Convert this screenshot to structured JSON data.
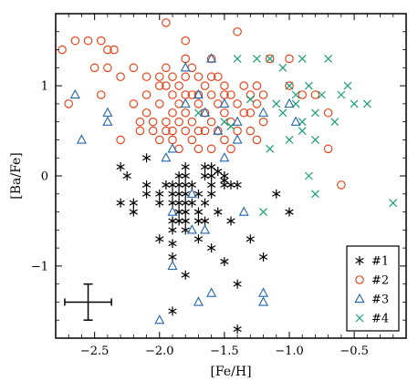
{
  "chart_data": {
    "type": "scatter",
    "xlabel": "[Fe/H]",
    "ylabel": "[Ba/Fe]",
    "xlim": [
      -2.8,
      -0.1
    ],
    "ylim": [
      -1.8,
      1.8
    ],
    "xticks": [
      -2.5,
      -2.0,
      -1.5,
      -1.0,
      -0.5
    ],
    "xtick_labels": [
      "−2.5",
      "−2.0",
      "−1.5",
      "−1.0",
      "−0.5"
    ],
    "yticks": [
      -1,
      0,
      1
    ],
    "ytick_labels": [
      "−1",
      "0",
      "1"
    ],
    "legend_position": "lower-right",
    "error_bar": {
      "x": -2.55,
      "y": -1.4,
      "xerr": 0.18,
      "yerr": 0.2
    },
    "series": [
      {
        "name": "#1",
        "marker": "asterisk",
        "color": "#000000",
        "points": [
          [
            -2.3,
            -0.3
          ],
          [
            -2.2,
            -0.4
          ],
          [
            -2.2,
            -0.3
          ],
          [
            -2.1,
            -0.2
          ],
          [
            -2.1,
            -0.1
          ],
          [
            -2.0,
            -0.2
          ],
          [
            -2.0,
            -0.3
          ],
          [
            -1.95,
            -0.1
          ],
          [
            -1.9,
            -0.1
          ],
          [
            -1.9,
            -0.2
          ],
          [
            -1.9,
            -0.3
          ],
          [
            -1.9,
            -0.5
          ],
          [
            -1.9,
            -0.6
          ],
          [
            -1.9,
            -0.75
          ],
          [
            -1.85,
            0.0
          ],
          [
            -1.85,
            -0.1
          ],
          [
            -1.85,
            -0.2
          ],
          [
            -1.85,
            -0.3
          ],
          [
            -1.85,
            -0.4
          ],
          [
            -1.85,
            -0.5
          ],
          [
            -1.8,
            0.1
          ],
          [
            -1.8,
            0.0
          ],
          [
            -1.8,
            -0.1
          ],
          [
            -1.8,
            -0.2
          ],
          [
            -1.8,
            -0.3
          ],
          [
            -1.8,
            -0.4
          ],
          [
            -1.8,
            -0.5
          ],
          [
            -1.8,
            -0.6
          ],
          [
            -1.75,
            -0.1
          ],
          [
            -1.75,
            -0.3
          ],
          [
            -1.7,
            -0.2
          ],
          [
            -1.7,
            -0.4
          ],
          [
            -1.7,
            -0.5
          ],
          [
            -1.7,
            -0.7
          ],
          [
            -1.65,
            0.1
          ],
          [
            -1.65,
            0.0
          ],
          [
            -1.65,
            -0.3
          ],
          [
            -1.65,
            -0.5
          ],
          [
            -1.6,
            0.0
          ],
          [
            -1.6,
            -0.1
          ],
          [
            -1.6,
            -0.2
          ],
          [
            -1.55,
            -0.4
          ],
          [
            -1.5,
            0.0
          ],
          [
            -1.5,
            -0.1
          ],
          [
            -1.45,
            -0.1
          ],
          [
            -1.45,
            -0.5
          ],
          [
            -1.4,
            -0.1
          ],
          [
            -1.3,
            -0.7
          ],
          [
            -1.2,
            -0.9
          ],
          [
            -1.1,
            -0.2
          ],
          [
            -1.0,
            -0.4
          ],
          [
            -2.3,
            0.1
          ],
          [
            -2.25,
            0.0
          ],
          [
            -2.1,
            0.2
          ],
          [
            -2.0,
            -0.7
          ],
          [
            -1.9,
            -0.9
          ],
          [
            -1.8,
            -1.1
          ],
          [
            -1.9,
            -1.5
          ],
          [
            -1.6,
            -0.8
          ],
          [
            -1.5,
            -0.95
          ],
          [
            -1.4,
            -1.2
          ],
          [
            -1.4,
            -1.7
          ],
          [
            -1.5,
            -0.05
          ],
          [
            -1.6,
            0.1
          ],
          [
            -1.55,
            0.05
          ]
        ]
      },
      {
        "name": "#2",
        "marker": "circle",
        "color": "#e8451c",
        "points": [
          [
            -2.75,
            1.4
          ],
          [
            -2.65,
            1.5
          ],
          [
            -2.55,
            1.5
          ],
          [
            -2.45,
            1.5
          ],
          [
            -2.4,
            1.4
          ],
          [
            -2.35,
            1.4
          ],
          [
            -2.7,
            0.8
          ],
          [
            -2.5,
            1.2
          ],
          [
            -2.45,
            0.9
          ],
          [
            -2.4,
            1.2
          ],
          [
            -2.3,
            1.1
          ],
          [
            -2.3,
            0.4
          ],
          [
            -2.2,
            1.2
          ],
          [
            -2.2,
            0.8
          ],
          [
            -2.15,
            0.6
          ],
          [
            -2.15,
            0.5
          ],
          [
            -2.1,
            0.9
          ],
          [
            -2.05,
            0.6
          ],
          [
            -2.05,
            0.5
          ],
          [
            -2.0,
            1.1
          ],
          [
            -2.0,
            0.8
          ],
          [
            -2.0,
            0.4
          ],
          [
            -1.95,
            1.7
          ],
          [
            -1.95,
            1.2
          ],
          [
            -1.95,
            1.0
          ],
          [
            -1.95,
            0.6
          ],
          [
            -1.95,
            0.5
          ],
          [
            -1.9,
            1.1
          ],
          [
            -1.9,
            0.9
          ],
          [
            -1.9,
            0.7
          ],
          [
            -1.9,
            0.4
          ],
          [
            -1.85,
            1.0
          ],
          [
            -1.85,
            0.8
          ],
          [
            -1.85,
            0.6
          ],
          [
            -1.85,
            0.3
          ],
          [
            -1.8,
            1.5
          ],
          [
            -1.8,
            1.3
          ],
          [
            -1.8,
            1.1
          ],
          [
            -1.8,
            0.9
          ],
          [
            -1.8,
            0.7
          ],
          [
            -1.8,
            0.5
          ],
          [
            -1.75,
            1.2
          ],
          [
            -1.75,
            0.9
          ],
          [
            -1.75,
            0.6
          ],
          [
            -1.75,
            0.4
          ],
          [
            -1.7,
            1.1
          ],
          [
            -1.7,
            0.8
          ],
          [
            -1.7,
            0.5
          ],
          [
            -1.7,
            0.3
          ],
          [
            -1.65,
            1.0
          ],
          [
            -1.65,
            0.7
          ],
          [
            -1.65,
            0.5
          ],
          [
            -1.6,
            1.3
          ],
          [
            -1.6,
            1.1
          ],
          [
            -1.6,
            0.9
          ],
          [
            -1.6,
            0.6
          ],
          [
            -1.6,
            0.3
          ],
          [
            -1.55,
            1.1
          ],
          [
            -1.55,
            0.8
          ],
          [
            -1.55,
            0.5
          ],
          [
            -1.5,
            1.0
          ],
          [
            -1.5,
            0.7
          ],
          [
            -1.5,
            0.4
          ],
          [
            -1.45,
            0.9
          ],
          [
            -1.45,
            0.6
          ],
          [
            -1.45,
            0.3
          ],
          [
            -1.4,
            1.6
          ],
          [
            -1.4,
            0.8
          ],
          [
            -1.4,
            0.5
          ],
          [
            -1.35,
            1.0
          ],
          [
            -1.35,
            0.7
          ],
          [
            -1.3,
            0.9
          ],
          [
            -1.3,
            0.5
          ],
          [
            -1.25,
            0.8
          ],
          [
            -1.25,
            0.4
          ],
          [
            -1.2,
            0.9
          ],
          [
            -1.2,
            0.6
          ],
          [
            -1.15,
            1.3
          ],
          [
            -1.0,
            1.3
          ],
          [
            -1.0,
            1.0
          ],
          [
            -0.9,
            0.9
          ],
          [
            -0.8,
            0.9
          ],
          [
            -0.7,
            0.3
          ],
          [
            -0.7,
            0.7
          ],
          [
            -0.6,
            -0.1
          ],
          [
            -2.1,
            1.1
          ],
          [
            -2.0,
            1.0
          ],
          [
            -2.1,
            0.7
          ],
          [
            -1.9,
            0.5
          ],
          [
            -1.7,
            0.9
          ],
          [
            -1.5,
            0.9
          ],
          [
            -1.3,
            0.7
          ],
          [
            -1.25,
            1.0
          ]
        ]
      },
      {
        "name": "#3",
        "marker": "triangle",
        "color": "#2166ac",
        "points": [
          [
            -2.65,
            0.9
          ],
          [
            -2.6,
            0.4
          ],
          [
            -2.4,
            0.7
          ],
          [
            -2.4,
            0.6
          ],
          [
            -2.0,
            -1.6
          ],
          [
            -1.95,
            0.2
          ],
          [
            -1.9,
            0.3
          ],
          [
            -1.9,
            -0.4
          ],
          [
            -1.9,
            -1.0
          ],
          [
            -1.8,
            1.2
          ],
          [
            -1.8,
            0.8
          ],
          [
            -1.75,
            -0.2
          ],
          [
            -1.75,
            -0.6
          ],
          [
            -1.7,
            0.9
          ],
          [
            -1.7,
            -1.4
          ],
          [
            -1.65,
            0.7
          ],
          [
            -1.65,
            -0.6
          ],
          [
            -1.6,
            1.3
          ],
          [
            -1.6,
            -1.3
          ],
          [
            -1.55,
            0.5
          ],
          [
            -1.5,
            0.8
          ],
          [
            -1.5,
            0.2
          ],
          [
            -1.4,
            0.4
          ],
          [
            -1.4,
            0.6
          ],
          [
            -1.35,
            -0.4
          ],
          [
            -1.2,
            -1.3
          ],
          [
            -1.2,
            -1.4
          ],
          [
            -1.2,
            0.7
          ],
          [
            -0.95,
            0.6
          ],
          [
            -1.0,
            0.8
          ]
        ]
      },
      {
        "name": "#4",
        "marker": "x",
        "color": "#1a9e77",
        "points": [
          [
            -1.4,
            1.3
          ],
          [
            -1.25,
            1.3
          ],
          [
            -1.15,
            1.3
          ],
          [
            -1.05,
            1.2
          ],
          [
            -0.9,
            1.3
          ],
          [
            -0.7,
            1.3
          ],
          [
            -1.0,
            1.0
          ],
          [
            -0.85,
            1.0
          ],
          [
            -0.75,
            0.9
          ],
          [
            -0.6,
            0.9
          ],
          [
            -0.55,
            1.0
          ],
          [
            -0.5,
            0.8
          ],
          [
            -0.4,
            0.8
          ],
          [
            -1.1,
            0.8
          ],
          [
            -0.95,
            0.8
          ],
          [
            -0.8,
            0.7
          ],
          [
            -0.65,
            0.6
          ],
          [
            -0.9,
            0.5
          ],
          [
            -0.8,
            0.4
          ],
          [
            -1.0,
            0.4
          ],
          [
            -0.9,
            0.6
          ],
          [
            -0.85,
            0.0
          ],
          [
            -0.8,
            -0.2
          ],
          [
            -0.2,
            -0.3
          ],
          [
            -1.2,
            -0.4
          ],
          [
            -1.15,
            0.3
          ],
          [
            -0.95,
            0.9
          ],
          [
            -1.05,
            0.7
          ],
          [
            -1.3,
            0.85
          ],
          [
            -1.45,
            0.55
          ],
          [
            -1.7,
            0.7
          ],
          [
            -1.5,
            0.6
          ]
        ]
      }
    ]
  }
}
